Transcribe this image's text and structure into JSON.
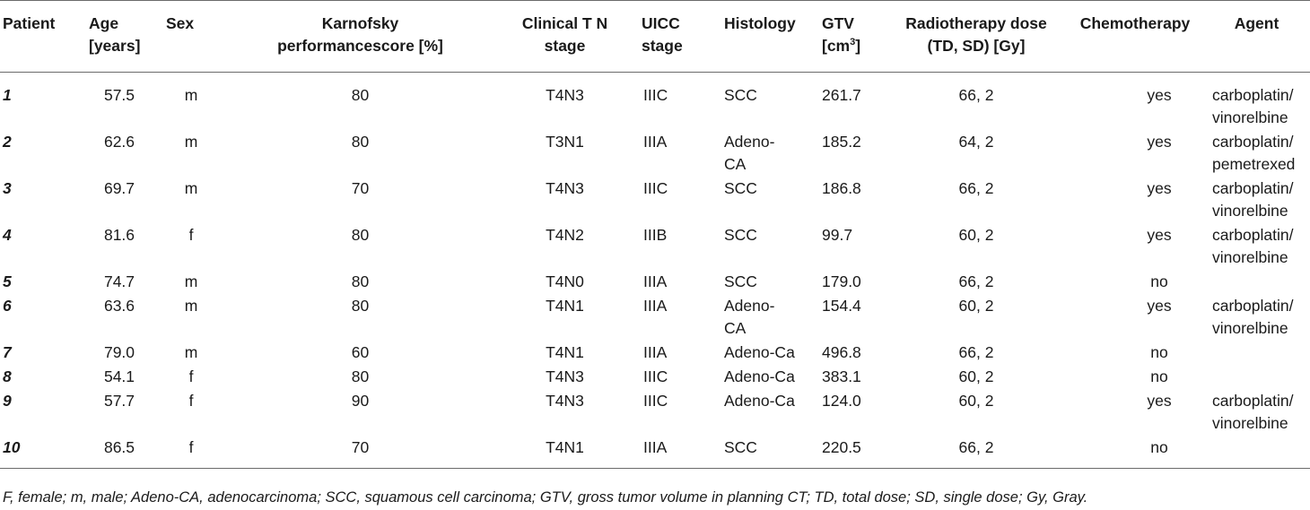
{
  "headers": {
    "patient": "Patient",
    "age_line1": "Age",
    "age_line2": "[years]",
    "sex": "Sex",
    "kps_line1": "Karnofsky",
    "kps_line2": "performancescore [%]",
    "tn_line1": "Clinical T N",
    "tn_line2": "stage",
    "uicc_line1": "UICC",
    "uicc_line2": "stage",
    "histology": "Histology",
    "gtv_line1": "GTV",
    "gtv_line2_base": "[cm",
    "gtv_line2_sup": "3",
    "gtv_line2_end": "]",
    "dose_line1": "Radiotherapy dose",
    "dose_line2": "(TD, SD) [Gy]",
    "chemo": "Chemotherapy",
    "agent": "Agent"
  },
  "rows": [
    {
      "patient": "1",
      "age": "57.5",
      "sex": "m",
      "kps": "80",
      "tn": "T4N3",
      "uicc": "IIIC",
      "histology": [
        "SCC"
      ],
      "gtv": "261.7",
      "dose": "66, 2",
      "chemo": "yes",
      "agent": [
        "carboplatin/",
        "vinorelbine"
      ]
    },
    {
      "patient": "2",
      "age": "62.6",
      "sex": "m",
      "kps": "80",
      "tn": "T3N1",
      "uicc": "IIIA",
      "histology": [
        "Adeno-",
        "CA"
      ],
      "gtv": "185.2",
      "dose": "64, 2",
      "chemo": "yes",
      "agent": [
        "carboplatin/",
        "pemetrexed"
      ]
    },
    {
      "patient": "3",
      "age": "69.7",
      "sex": "m",
      "kps": "70",
      "tn": "T4N3",
      "uicc": "IIIC",
      "histology": [
        "SCC"
      ],
      "gtv": "186.8",
      "dose": "66, 2",
      "chemo": "yes",
      "agent": [
        "carboplatin/",
        "vinorelbine"
      ]
    },
    {
      "patient": "4",
      "age": "81.6",
      "sex": "f",
      "kps": "80",
      "tn": "T4N2",
      "uicc": "IIIB",
      "histology": [
        "SCC"
      ],
      "gtv": "99.7",
      "dose": "60, 2",
      "chemo": "yes",
      "agent": [
        "carboplatin/",
        "vinorelbine"
      ]
    },
    {
      "patient": "5",
      "age": "74.7",
      "sex": "m",
      "kps": "80",
      "tn": "T4N0",
      "uicc": "IIIA",
      "histology": [
        "SCC"
      ],
      "gtv": "179.0",
      "dose": "66, 2",
      "chemo": "no",
      "agent": []
    },
    {
      "patient": "6",
      "age": "63.6",
      "sex": "m",
      "kps": "80",
      "tn": "T4N1",
      "uicc": "IIIA",
      "histology": [
        "Adeno-",
        "CA"
      ],
      "gtv": "154.4",
      "dose": "60, 2",
      "chemo": "yes",
      "agent": [
        "carboplatin/",
        "vinorelbine"
      ]
    },
    {
      "patient": "7",
      "age": "79.0",
      "sex": "m",
      "kps": "60",
      "tn": "T4N1",
      "uicc": "IIIA",
      "histology": [
        "Adeno-Ca"
      ],
      "gtv": "496.8",
      "dose": "66, 2",
      "chemo": "no",
      "agent": []
    },
    {
      "patient": "8",
      "age": "54.1",
      "sex": "f",
      "kps": "80",
      "tn": "T4N3",
      "uicc": "IIIC",
      "histology": [
        "Adeno-Ca"
      ],
      "gtv": "383.1",
      "dose": "60, 2",
      "chemo": "no",
      "agent": []
    },
    {
      "patient": "9",
      "age": "57.7",
      "sex": "f",
      "kps": "90",
      "tn": "T4N3",
      "uicc": "IIIC",
      "histology": [
        "Adeno-Ca"
      ],
      "gtv": "124.0",
      "dose": "60, 2",
      "chemo": "yes",
      "agent": [
        "carboplatin/",
        "vinorelbine"
      ]
    },
    {
      "patient": "10",
      "age": "86.5",
      "sex": "f",
      "kps": "70",
      "tn": "T4N1",
      "uicc": "IIIA",
      "histology": [
        "SCC"
      ],
      "gtv": "220.5",
      "dose": "66, 2",
      "chemo": "no",
      "agent": []
    }
  ],
  "footnote": "F, female; m, male; Adeno-CA, adenocarcinoma; SCC, squamous cell carcinoma; GTV, gross tumor volume in planning CT; TD, total dose; SD, single dose; Gy, Gray."
}
